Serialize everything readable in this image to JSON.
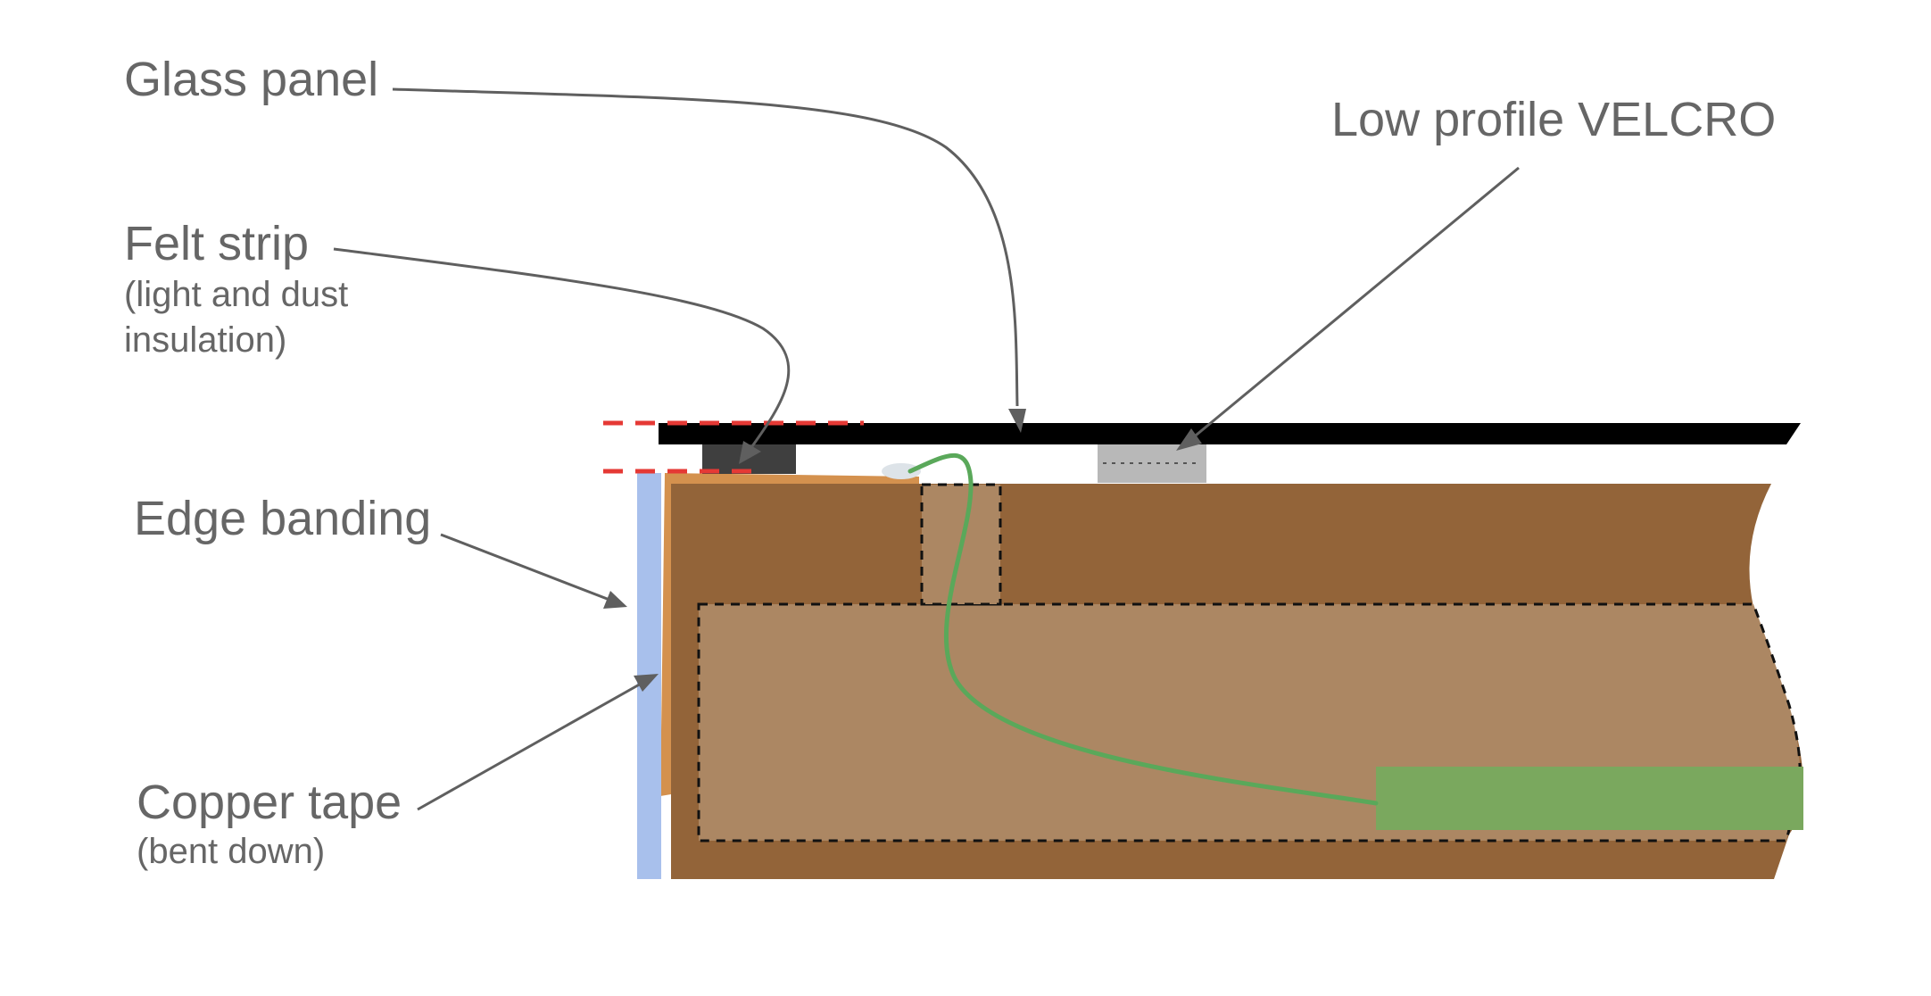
{
  "labels": {
    "glass_panel": "Glass panel",
    "low_profile_velcro": "Low profile VELCRO",
    "felt_strip": "Felt strip",
    "felt_strip_note_line1": "(light and dust",
    "felt_strip_note_line2": "insulation)",
    "edge_banding": "Edge banding",
    "copper_tape": "Copper tape",
    "copper_tape_note": "(bent down)"
  },
  "colors": {
    "wood": "#936439",
    "wood_cutout": "#ac8763",
    "edge_banding": "#d4914e",
    "copper_tape": "#a8c0ec",
    "glass_panel": "#000000",
    "felt_strip": "#3f3f3f",
    "velcro": "#b8b8b8",
    "wire": "#5aa85a",
    "circuit_board": "#7aa85e",
    "guide_lines": "#e53935",
    "label_text": "#666666"
  },
  "icons": {
    "sensor_contact": "oval-pad"
  }
}
